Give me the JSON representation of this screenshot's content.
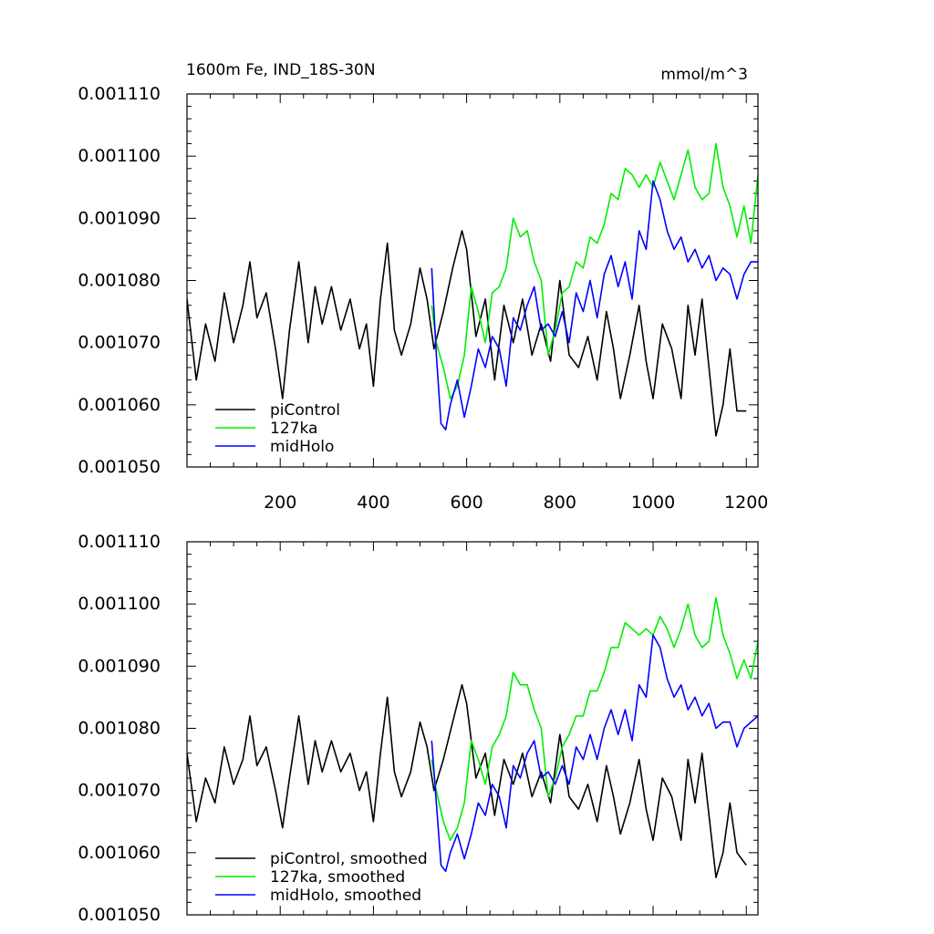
{
  "chart_data": [
    {
      "type": "line",
      "title": "1600m Fe, IND_18S-30N",
      "units": "mmol/m^3",
      "ylim": [
        0.00105,
        0.00111
      ],
      "xlim": [
        0,
        1225
      ],
      "yticks": [
        "0.001050",
        "0.001060",
        "0.001070",
        "0.001080",
        "0.001090",
        "0.001100",
        "0.001110"
      ],
      "xticks": [
        "200",
        "400",
        "600",
        "800",
        "1000",
        "1200"
      ],
      "legend": [
        "piControl",
        "127ka",
        "midHolo"
      ],
      "series": [
        {
          "name": "piControl",
          "color": "#000000",
          "x": [
            0,
            20,
            40,
            60,
            80,
            100,
            120,
            135,
            150,
            170,
            190,
            205,
            220,
            240,
            260,
            275,
            290,
            310,
            330,
            350,
            370,
            385,
            400,
            415,
            430,
            445,
            460,
            480,
            500,
            515,
            530,
            550,
            570,
            590,
            600,
            620,
            640,
            660,
            680,
            700,
            720,
            740,
            760,
            780,
            800,
            820,
            840,
            860,
            880,
            900,
            915,
            930,
            950,
            970,
            985,
            1000,
            1020,
            1040,
            1060,
            1075,
            1090,
            1105,
            1120,
            1135,
            1150,
            1165,
            1180,
            1200
          ],
          "values": [
            0.001077,
            0.001064,
            0.001073,
            0.001067,
            0.001078,
            0.00107,
            0.001076,
            0.001083,
            0.001074,
            0.001078,
            0.001069,
            0.001061,
            0.001072,
            0.001083,
            0.00107,
            0.001079,
            0.001073,
            0.001079,
            0.001072,
            0.001077,
            0.001069,
            0.001073,
            0.001063,
            0.001077,
            0.001086,
            0.001072,
            0.001068,
            0.001073,
            0.001082,
            0.001077,
            0.001069,
            0.001075,
            0.001082,
            0.001088,
            0.001085,
            0.001071,
            0.001077,
            0.001064,
            0.001076,
            0.00107,
            0.001077,
            0.001068,
            0.001073,
            0.001067,
            0.00108,
            0.001068,
            0.001066,
            0.001071,
            0.001064,
            0.001075,
            0.001069,
            0.001061,
            0.001068,
            0.001076,
            0.001067,
            0.001061,
            0.001073,
            0.001069,
            0.001061,
            0.001076,
            0.001068,
            0.001077,
            0.001066,
            0.001055,
            0.00106,
            0.001069,
            0.001059,
            0.001059
          ]
        },
        {
          "name": "127ka",
          "color": "#00ee00",
          "x": [
            525,
            535,
            550,
            565,
            580,
            595,
            610,
            625,
            640,
            655,
            670,
            685,
            700,
            715,
            730,
            745,
            760,
            775,
            790,
            805,
            820,
            835,
            850,
            865,
            880,
            895,
            910,
            925,
            940,
            955,
            970,
            985,
            1000,
            1015,
            1030,
            1045,
            1060,
            1075,
            1090,
            1105,
            1120,
            1135,
            1150,
            1165,
            1180,
            1195,
            1210,
            1225
          ],
          "values": [
            0.001076,
            0.00107,
            0.001066,
            0.001061,
            0.001063,
            0.001068,
            0.001079,
            0.001075,
            0.00107,
            0.001078,
            0.001079,
            0.001082,
            0.00109,
            0.001087,
            0.001088,
            0.001083,
            0.00108,
            0.001068,
            0.001072,
            0.001078,
            0.001079,
            0.001083,
            0.001082,
            0.001087,
            0.001086,
            0.001089,
            0.001094,
            0.001093,
            0.001098,
            0.001097,
            0.001095,
            0.001097,
            0.001095,
            0.001099,
            0.001096,
            0.001093,
            0.001097,
            0.001101,
            0.001095,
            0.001093,
            0.001094,
            0.001102,
            0.001095,
            0.001092,
            0.001087,
            0.001092,
            0.001086,
            0.001097
          ]
        },
        {
          "name": "midHolo",
          "color": "#0000ff",
          "x": [
            525,
            535,
            545,
            555,
            565,
            580,
            595,
            610,
            625,
            640,
            655,
            670,
            685,
            700,
            715,
            730,
            745,
            760,
            775,
            790,
            805,
            820,
            835,
            850,
            865,
            880,
            895,
            910,
            925,
            940,
            955,
            970,
            985,
            1000,
            1015,
            1030,
            1045,
            1060,
            1075,
            1090,
            1105,
            1120,
            1135,
            1150,
            1165,
            1180,
            1195,
            1210,
            1225
          ],
          "values": [
            0.001082,
            0.001068,
            0.001057,
            0.001056,
            0.00106,
            0.001064,
            0.001058,
            0.001063,
            0.001069,
            0.001066,
            0.001071,
            0.001069,
            0.001063,
            0.001074,
            0.001072,
            0.001076,
            0.001079,
            0.001072,
            0.001073,
            0.001071,
            0.001075,
            0.00107,
            0.001078,
            0.001075,
            0.00108,
            0.001074,
            0.001081,
            0.001084,
            0.001079,
            0.001083,
            0.001077,
            0.001088,
            0.001085,
            0.001096,
            0.001093,
            0.001088,
            0.001085,
            0.001087,
            0.001083,
            0.001085,
            0.001082,
            0.001084,
            0.00108,
            0.001082,
            0.001081,
            0.001077,
            0.001081,
            0.001083,
            0.001083
          ]
        }
      ]
    },
    {
      "type": "line",
      "title": "",
      "ylim": [
        0.00105,
        0.00111
      ],
      "xlim": [
        0,
        1225
      ],
      "yticks": [
        "0.001050",
        "0.001060",
        "0.001070",
        "0.001080",
        "0.001090",
        "0.001100",
        "0.001110"
      ],
      "legend": [
        "piControl, smoothed",
        "127ka, smoothed",
        "midHolo, smoothed"
      ],
      "series": [
        {
          "name": "piControl, smoothed",
          "color": "#000000",
          "x": [
            0,
            20,
            40,
            60,
            80,
            100,
            120,
            135,
            150,
            170,
            190,
            205,
            220,
            240,
            260,
            275,
            290,
            310,
            330,
            350,
            370,
            385,
            400,
            415,
            430,
            445,
            460,
            480,
            500,
            515,
            530,
            550,
            570,
            590,
            600,
            620,
            640,
            660,
            680,
            700,
            720,
            740,
            760,
            780,
            800,
            820,
            840,
            860,
            880,
            900,
            915,
            930,
            950,
            970,
            985,
            1000,
            1020,
            1040,
            1060,
            1075,
            1090,
            1105,
            1120,
            1135,
            1150,
            1165,
            1180,
            1200
          ],
          "values": [
            0.001076,
            0.001065,
            0.001072,
            0.001068,
            0.001077,
            0.001071,
            0.001075,
            0.001082,
            0.001074,
            0.001077,
            0.00107,
            0.001064,
            0.001072,
            0.001082,
            0.001071,
            0.001078,
            0.001073,
            0.001078,
            0.001073,
            0.001076,
            0.00107,
            0.001073,
            0.001065,
            0.001076,
            0.001085,
            0.001073,
            0.001069,
            0.001073,
            0.001081,
            0.001077,
            0.00107,
            0.001075,
            0.001081,
            0.001087,
            0.001084,
            0.001072,
            0.001076,
            0.001066,
            0.001075,
            0.001071,
            0.001076,
            0.001069,
            0.001073,
            0.001068,
            0.001079,
            0.001069,
            0.001067,
            0.001071,
            0.001065,
            0.001074,
            0.001069,
            0.001063,
            0.001068,
            0.001075,
            0.001067,
            0.001062,
            0.001072,
            0.001069,
            0.001062,
            0.001075,
            0.001068,
            0.001076,
            0.001066,
            0.001056,
            0.00106,
            0.001068,
            0.00106,
            0.001058
          ]
        },
        {
          "name": "127ka, smoothed",
          "color": "#00ee00",
          "x": [
            525,
            535,
            550,
            565,
            580,
            595,
            610,
            625,
            640,
            655,
            670,
            685,
            700,
            715,
            730,
            745,
            760,
            775,
            790,
            805,
            820,
            835,
            850,
            865,
            880,
            895,
            910,
            925,
            940,
            955,
            970,
            985,
            1000,
            1015,
            1030,
            1045,
            1060,
            1075,
            1090,
            1105,
            1120,
            1135,
            1150,
            1165,
            1180,
            1195,
            1210,
            1225
          ],
          "values": [
            0.001075,
            0.00107,
            0.001065,
            0.001062,
            0.001064,
            0.001068,
            0.001078,
            0.001075,
            0.001071,
            0.001077,
            0.001079,
            0.001082,
            0.001089,
            0.001087,
            0.001087,
            0.001083,
            0.00108,
            0.001069,
            0.001072,
            0.001077,
            0.001079,
            0.001082,
            0.001082,
            0.001086,
            0.001086,
            0.001089,
            0.001093,
            0.001093,
            0.001097,
            0.001096,
            0.001095,
            0.001096,
            0.001095,
            0.001098,
            0.001096,
            0.001093,
            0.001096,
            0.0011,
            0.001095,
            0.001093,
            0.001094,
            0.001101,
            0.001095,
            0.001092,
            0.001088,
            0.001091,
            0.001088,
            0.001094
          ]
        },
        {
          "name": "midHolo, smoothed",
          "color": "#0000ff",
          "x": [
            525,
            535,
            545,
            555,
            565,
            580,
            595,
            610,
            625,
            640,
            655,
            670,
            685,
            700,
            715,
            730,
            745,
            760,
            775,
            790,
            805,
            820,
            835,
            850,
            865,
            880,
            895,
            910,
            925,
            940,
            955,
            970,
            985,
            1000,
            1015,
            1030,
            1045,
            1060,
            1075,
            1090,
            1105,
            1120,
            1135,
            1150,
            1165,
            1180,
            1195,
            1210,
            1225
          ],
          "values": [
            0.001078,
            0.001068,
            0.001058,
            0.001057,
            0.00106,
            0.001063,
            0.001059,
            0.001063,
            0.001068,
            0.001066,
            0.001071,
            0.001069,
            0.001064,
            0.001074,
            0.001072,
            0.001076,
            0.001078,
            0.001072,
            0.001073,
            0.001071,
            0.001074,
            0.001071,
            0.001077,
            0.001075,
            0.001079,
            0.001075,
            0.00108,
            0.001083,
            0.001079,
            0.001083,
            0.001078,
            0.001087,
            0.001085,
            0.001095,
            0.001093,
            0.001088,
            0.001085,
            0.001087,
            0.001083,
            0.001085,
            0.001082,
            0.001084,
            0.00108,
            0.001081,
            0.001081,
            0.001077,
            0.00108,
            0.001081,
            0.001082
          ]
        }
      ]
    }
  ]
}
